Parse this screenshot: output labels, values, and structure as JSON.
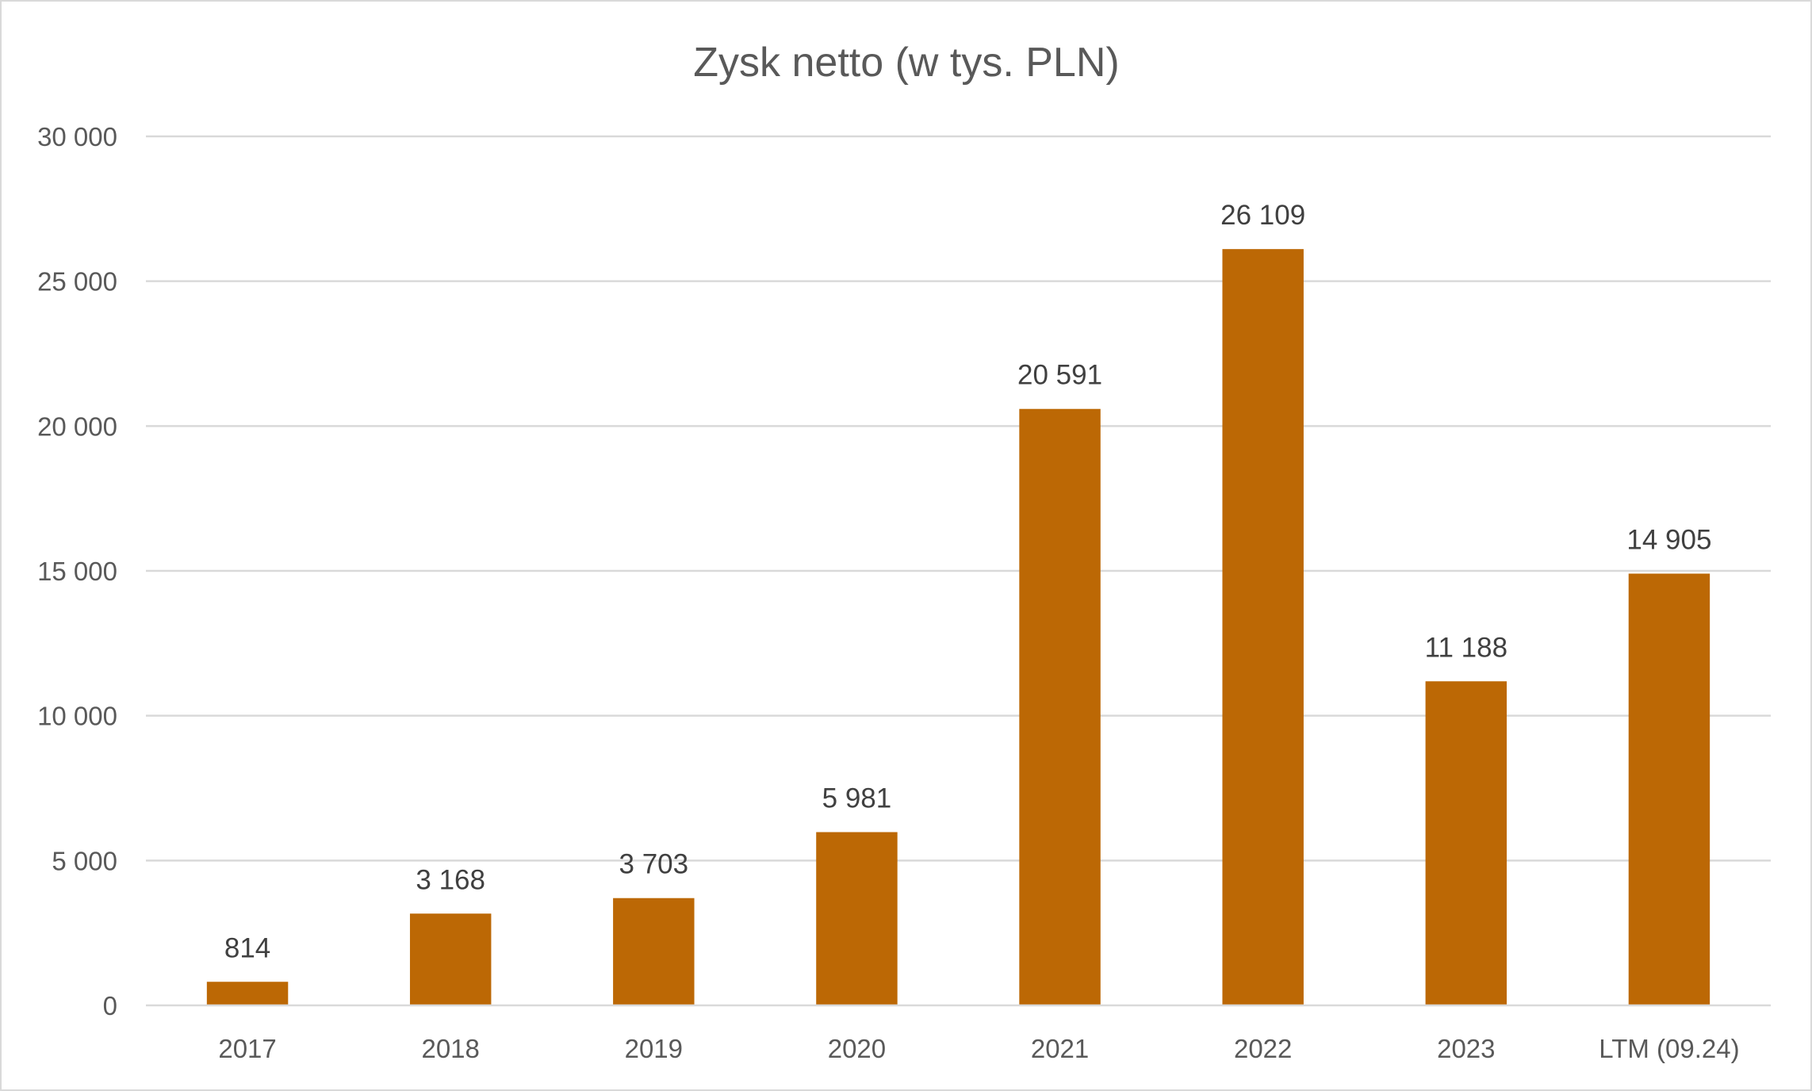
{
  "chart_data": {
    "type": "bar",
    "title": "Zysk netto (w tys. PLN)",
    "xlabel": "",
    "ylabel": "",
    "categories": [
      "2017",
      "2018",
      "2019",
      "2020",
      "2021",
      "2022",
      "2023",
      "LTM (09.24)"
    ],
    "values": [
      814,
      3168,
      3703,
      5981,
      20591,
      26109,
      11188,
      14905
    ],
    "data_labels": [
      "814",
      "3 168",
      "3 703",
      "5 981",
      "20 591",
      "26 109",
      "11 188",
      "14 905"
    ],
    "ylim": [
      0,
      30000
    ],
    "yticks": [
      0,
      5000,
      10000,
      15000,
      20000,
      25000,
      30000
    ],
    "ytick_labels": [
      "0",
      "5 000",
      "10 000",
      "15 000",
      "20 000",
      "25 000",
      "30 000"
    ],
    "grid": true,
    "legend": "none",
    "bar_color": "#bc6805"
  }
}
